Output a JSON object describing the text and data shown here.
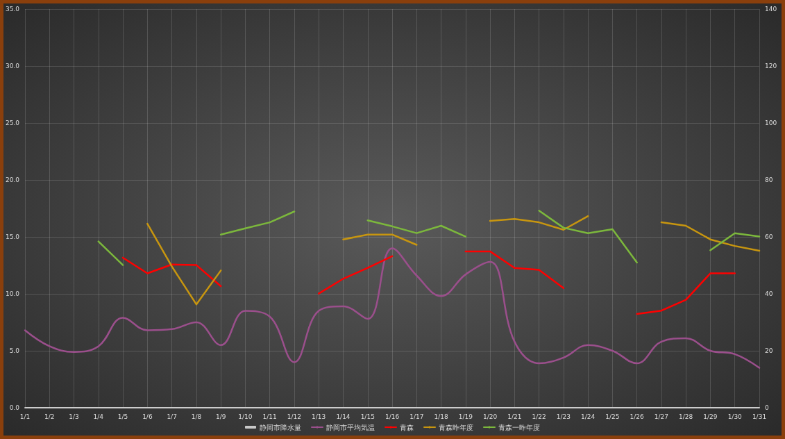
{
  "chart_data": {
    "type": "line",
    "categories": [
      "1/1",
      "1/2",
      "1/3",
      "1/4",
      "1/5",
      "1/6",
      "1/7",
      "1/8",
      "1/9",
      "1/10",
      "1/11",
      "1/12",
      "1/13",
      "1/14",
      "1/15",
      "1/16",
      "1/17",
      "1/18",
      "1/19",
      "1/20",
      "1/21",
      "1/22",
      "1/23",
      "1/24",
      "1/25",
      "1/26",
      "1/27",
      "1/28",
      "1/29",
      "1/30",
      "1/31"
    ],
    "ylim": [
      0,
      35
    ],
    "yticks": [
      {
        "value": 0,
        "label": "0.0"
      },
      {
        "value": 5,
        "label": "5.0"
      },
      {
        "value": 10,
        "label": "10.0"
      },
      {
        "value": 15,
        "label": "15.0"
      },
      {
        "value": 20,
        "label": "20.0"
      },
      {
        "value": 25,
        "label": "25.0"
      },
      {
        "value": 30,
        "label": "30.0"
      },
      {
        "value": 35,
        "label": "35.0"
      }
    ],
    "y2lim": [
      0,
      140
    ],
    "y2ticks": [
      0,
      20,
      40,
      60,
      80,
      100,
      120,
      140
    ],
    "grid": true,
    "legend": "bottom",
    "marker": "none",
    "line_style": "solid",
    "series": [
      {
        "name": "静岡市降水量",
        "type": "bar",
        "axis": "y2",
        "color": "#c8c8c8",
        "values": [
          0,
          0,
          0,
          0,
          0,
          0,
          0,
          0,
          0,
          0,
          0,
          0,
          0,
          0,
          0,
          0,
          0,
          0,
          0,
          0,
          0,
          0,
          0,
          0,
          0,
          0,
          0,
          0,
          0,
          0,
          0
        ]
      },
      {
        "name": "静岡市平均気温",
        "axis": "y",
        "color": "#9b4f8c",
        "values": [
          6.8,
          5.4,
          4.9,
          5.4,
          7.9,
          6.8,
          6.9,
          7.5,
          5.5,
          8.5,
          8.0,
          4.0,
          8.5,
          8.9,
          7.8,
          14.0,
          11.6,
          9.8,
          11.7,
          12.8,
          5.8,
          3.9,
          4.4,
          5.5,
          5.0,
          3.9,
          5.8,
          6.1,
          5.0,
          4.7,
          3.5
        ]
      },
      {
        "name": "青森",
        "axis": "y2",
        "color": "#ff0000",
        "values": [
          null,
          null,
          null,
          null,
          52.7,
          47.2,
          50.3,
          50.1,
          42.7,
          null,
          null,
          null,
          40.1,
          45.3,
          49.1,
          53.2,
          null,
          null,
          54.9,
          54.9,
          49.1,
          48.4,
          42.0,
          null,
          null,
          32.9,
          34.1,
          37.9,
          47.2,
          47.2,
          null
        ]
      },
      {
        "name": "青森昨年度",
        "axis": "y2",
        "color": "#c8960f",
        "values": [
          null,
          null,
          null,
          null,
          null,
          64.6,
          49.6,
          36.3,
          48.2,
          null,
          null,
          null,
          null,
          59.1,
          60.8,
          60.8,
          57.2,
          null,
          null,
          65.6,
          66.3,
          65.1,
          62.5,
          67.3,
          null,
          null,
          65.1,
          63.9,
          59.1,
          56.8,
          55.1
        ]
      },
      {
        "name": "青森一昨年度",
        "axis": "y2",
        "color": "#7cb83c",
        "values": [
          null,
          null,
          null,
          58.4,
          50.1,
          null,
          null,
          null,
          60.8,
          63.0,
          65.1,
          68.9,
          null,
          null,
          65.8,
          63.7,
          61.3,
          63.9,
          60.1,
          null,
          null,
          69.2,
          63.2,
          61.3,
          62.7,
          51.0,
          null,
          null,
          55.3,
          61.3,
          60.1
        ]
      }
    ]
  }
}
